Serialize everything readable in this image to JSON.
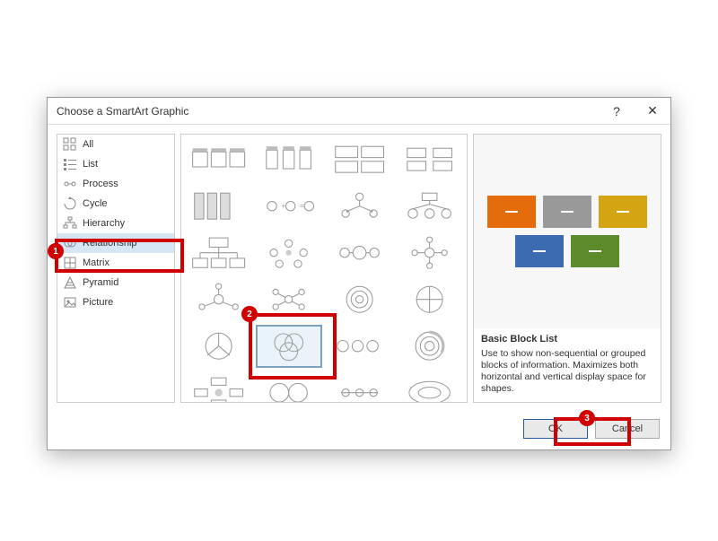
{
  "dialog": {
    "title": "Choose a SmartArt Graphic",
    "help_glyph": "?",
    "close_glyph": "✕"
  },
  "categories": [
    {
      "label": "All",
      "icon": "all"
    },
    {
      "label": "List",
      "icon": "list"
    },
    {
      "label": "Process",
      "icon": "process"
    },
    {
      "label": "Cycle",
      "icon": "cycle"
    },
    {
      "label": "Hierarchy",
      "icon": "hierarchy"
    },
    {
      "label": "Relationship",
      "icon": "relationship",
      "selected": true
    },
    {
      "label": "Matrix",
      "icon": "matrix"
    },
    {
      "label": "Pyramid",
      "icon": "pyramid"
    },
    {
      "label": "Picture",
      "icon": "picture"
    }
  ],
  "gallery": {
    "selected_index": 17,
    "cols": 4,
    "thumb_count": 24
  },
  "preview": {
    "title": "Basic Block List",
    "description": "Use to show non-sequential or grouped blocks of information. Maximizes both horizontal and vertical display space for shapes.",
    "blocks": [
      {
        "color": "#e46c0a"
      },
      {
        "color": "#999999"
      },
      {
        "color": "#d4a412"
      },
      {
        "color": "#3c6bb0"
      },
      {
        "color": "#5d8a2a"
      }
    ],
    "background": "#f7f7f7"
  },
  "footer": {
    "ok_label": "OK",
    "cancel_label": "Cancel"
  },
  "callouts": {
    "c1": "1",
    "c2": "2",
    "c3": "3"
  },
  "colors": {
    "accent_red": "#d10000",
    "select_border": "#7da2c1",
    "select_bg": "#eaf2fa",
    "border": "#cccccc"
  }
}
